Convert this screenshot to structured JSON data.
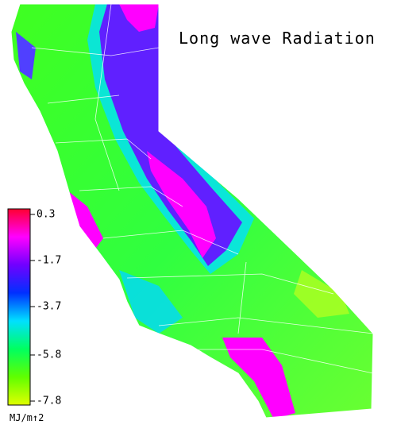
{
  "title": "Long wave Radiation",
  "legend": {
    "ticks": [
      0.3,
      -1.7,
      -3.7,
      -5.8,
      -7.8
    ],
    "colors": [
      "#ff0030",
      "#ff00ff",
      "#7000ff",
      "#0030ff",
      "#00e0ff",
      "#00ff60",
      "#60ff00",
      "#e0ff00"
    ],
    "unit": "MJ/m↑2"
  }
}
